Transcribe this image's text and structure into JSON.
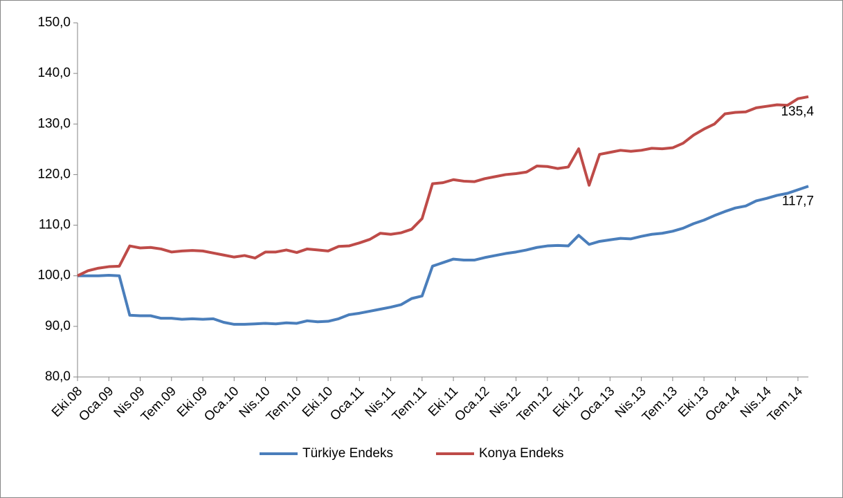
{
  "chart_data": {
    "type": "line",
    "categories": [
      "Eki.08",
      null,
      null,
      "Oca.09",
      null,
      null,
      "Nis.09",
      null,
      null,
      "Tem.09",
      null,
      null,
      "Eki.09",
      null,
      null,
      "Oca.10",
      null,
      null,
      "Nis.10",
      null,
      null,
      "Tem.10",
      null,
      null,
      "Eki.10",
      null,
      null,
      "Oca.11",
      null,
      null,
      "Nis.11",
      null,
      null,
      "Tem.11",
      null,
      null,
      "Eki.11",
      null,
      null,
      "Oca.12",
      null,
      null,
      "Nis.12",
      null,
      null,
      "Tem.12",
      null,
      null,
      "Eki.12",
      null,
      null,
      "Oca.13",
      null,
      null,
      "Nis.13",
      null,
      null,
      "Tem.13",
      null,
      null,
      "Eki.13",
      null,
      null,
      "Oca.14",
      null,
      null,
      "Nis.14",
      null,
      null,
      "Tem.14",
      null
    ],
    "series": [
      {
        "name": "Türkiye Endeks",
        "color": "#4a7ebb",
        "values": [
          100.0,
          100.0,
          100.0,
          100.1,
          100.0,
          92.2,
          92.1,
          92.1,
          91.6,
          91.6,
          91.4,
          91.5,
          91.4,
          91.5,
          90.8,
          90.4,
          90.4,
          90.5,
          90.6,
          90.5,
          90.7,
          90.6,
          91.1,
          90.9,
          91.0,
          91.5,
          92.3,
          92.6,
          93.0,
          93.4,
          93.8,
          94.3,
          95.5,
          96.0,
          101.9,
          102.6,
          103.3,
          103.1,
          103.1,
          103.6,
          104.0,
          104.4,
          104.7,
          105.1,
          105.6,
          105.9,
          106.0,
          105.9,
          108.0,
          106.2,
          106.8,
          107.1,
          107.4,
          107.3,
          107.8,
          108.2,
          108.4,
          108.8,
          109.4,
          110.3,
          111.0,
          111.9,
          112.7,
          113.4,
          113.8,
          114.8,
          115.3,
          115.9,
          116.3,
          117.0,
          117.7
        ],
        "value_labels": [
          null,
          null,
          null,
          null,
          null,
          null,
          null,
          null,
          null,
          null,
          null,
          null,
          null,
          null,
          null,
          null,
          null,
          null,
          null,
          null,
          null,
          null,
          null,
          null,
          null,
          null,
          null,
          null,
          null,
          null,
          null,
          null,
          null,
          null,
          null,
          null,
          null,
          null,
          null,
          null,
          null,
          null,
          null,
          null,
          null,
          null,
          null,
          null,
          null,
          null,
          null,
          null,
          null,
          null,
          null,
          null,
          null,
          null,
          null,
          null,
          null,
          null,
          null,
          null,
          null,
          null,
          null,
          null,
          null,
          null,
          "117,7"
        ]
      },
      {
        "name": "Konya Endeks",
        "color": "#be4b48",
        "values": [
          100.0,
          101.0,
          101.5,
          101.8,
          101.9,
          105.9,
          105.5,
          105.6,
          105.3,
          104.7,
          104.9,
          105.0,
          104.9,
          104.5,
          104.1,
          103.7,
          104.0,
          103.5,
          104.7,
          104.7,
          105.1,
          104.6,
          105.3,
          105.1,
          104.9,
          105.8,
          105.9,
          106.5,
          107.2,
          108.4,
          108.2,
          108.5,
          109.2,
          111.3,
          118.2,
          118.4,
          119.0,
          118.7,
          118.6,
          119.2,
          119.6,
          120.0,
          120.2,
          120.5,
          121.7,
          121.6,
          121.2,
          121.5,
          125.1,
          117.9,
          124.0,
          124.4,
          124.8,
          124.6,
          124.8,
          125.2,
          125.1,
          125.3,
          126.2,
          127.8,
          129.0,
          130.0,
          132.0,
          132.3,
          132.4,
          133.2,
          133.5,
          133.8,
          133.7,
          135.0,
          135.4
        ],
        "value_labels": [
          null,
          null,
          null,
          null,
          null,
          null,
          null,
          null,
          null,
          null,
          null,
          null,
          null,
          null,
          null,
          null,
          null,
          null,
          null,
          null,
          null,
          null,
          null,
          null,
          null,
          null,
          null,
          null,
          null,
          null,
          null,
          null,
          null,
          null,
          null,
          null,
          null,
          null,
          null,
          null,
          null,
          null,
          null,
          null,
          null,
          null,
          null,
          null,
          null,
          null,
          null,
          null,
          null,
          null,
          null,
          null,
          null,
          null,
          null,
          null,
          null,
          null,
          null,
          null,
          null,
          null,
          null,
          null,
          null,
          null,
          "135,4"
        ]
      }
    ],
    "ylim": [
      80,
      150
    ],
    "yticks": [
      {
        "value": 80,
        "label": "80,0"
      },
      {
        "value": 90,
        "label": "90,0"
      },
      {
        "value": 100,
        "label": "100,0"
      },
      {
        "value": 110,
        "label": "110,0"
      },
      {
        "value": 120,
        "label": "120,0"
      },
      {
        "value": 130,
        "label": "130,0"
      },
      {
        "value": 140,
        "label": "140,0"
      },
      {
        "value": 150,
        "label": "150,0"
      }
    ],
    "grid": false,
    "legend": "bottom"
  }
}
